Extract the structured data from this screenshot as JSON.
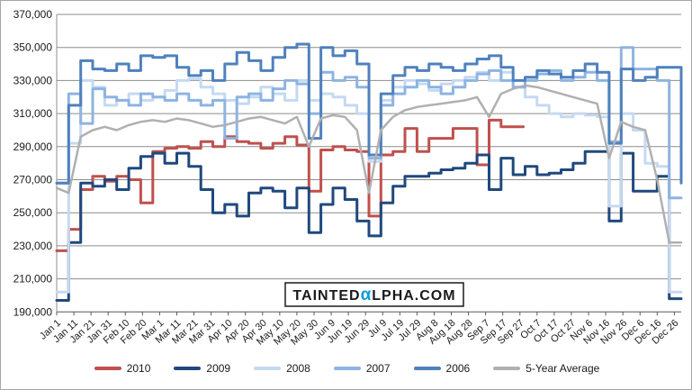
{
  "watermark": {
    "prefix": "TAINTED",
    "alpha": "α",
    "suffix": "LPHA.COM",
    "alpha_color": "#0a9bdc"
  },
  "chart_data": {
    "type": "line",
    "title": "",
    "xlabel": "",
    "ylabel": "",
    "ylim": [
      190000,
      370000
    ],
    "y_tick_step": 20000,
    "grid": true,
    "legend_position": "bottom",
    "x_unit": "day-of-year, weekly points",
    "x_total_days": 365,
    "x_days_per_point": 7,
    "x_tick_labels": [
      "Jan 1",
      "Jan 11",
      "Jan 21",
      "Jan 31",
      "Feb 10",
      "Feb 20",
      "Mar 1",
      "Mar 11",
      "Mar 21",
      "Mar 31",
      "Apr 10",
      "Apr 20",
      "Apr 30",
      "May 10",
      "May 20",
      "May 30",
      "Jun 9",
      "Jun 19",
      "Jun 29",
      "Jul 9",
      "Jul 19",
      "Jul 29",
      "Aug 8",
      "Aug 18",
      "Aug 28",
      "Sep 7",
      "Sep 17",
      "Sep 27",
      "Oct 7",
      "Oct 17",
      "Oct 27",
      "Nov 6",
      "Nov 16",
      "Nov 26",
      "Dec 6",
      "Dec 16",
      "Dec 26"
    ],
    "series": [
      {
        "name": "2010",
        "color": "#C0504D",
        "interp": "step",
        "values": [
          227000,
          240000,
          264000,
          272000,
          269000,
          272000,
          270000,
          256000,
          287000,
          289000,
          290000,
          289000,
          293000,
          290000,
          296000,
          293000,
          292000,
          289000,
          292000,
          296000,
          291000,
          263000,
          288000,
          290000,
          288000,
          287000,
          248000,
          285000,
          287000,
          301000,
          287000,
          295000,
          295000,
          301000,
          301000,
          279000,
          306000,
          302000,
          302000
        ]
      },
      {
        "name": "2009",
        "color": "#1F497D",
        "interp": "step",
        "values": [
          197000,
          232000,
          268000,
          266000,
          270000,
          264000,
          277000,
          284000,
          286000,
          280000,
          286000,
          278000,
          264000,
          250000,
          255000,
          248000,
          262000,
          265000,
          263000,
          253000,
          265000,
          238000,
          255000,
          265000,
          258000,
          245000,
          236000,
          256000,
          266000,
          272000,
          272000,
          274000,
          276000,
          277000,
          280000,
          285000,
          264000,
          283000,
          273000,
          278000,
          273000,
          274000,
          276000,
          280000,
          287000,
          287000,
          245000,
          286000,
          263000,
          263000,
          272000,
          198000,
          198000
        ]
      },
      {
        "name": "2008",
        "color": "#C5D9F1",
        "interp": "step",
        "values": [
          202000,
          292000,
          330000,
          326000,
          315000,
          318000,
          322000,
          318000,
          320000,
          324000,
          330000,
          331000,
          326000,
          322000,
          318000,
          316000,
          320000,
          326000,
          322000,
          318000,
          330000,
          318000,
          322000,
          320000,
          315000,
          310000,
          281000,
          318000,
          326000,
          330000,
          328000,
          324000,
          328000,
          330000,
          332000,
          335000,
          330000,
          335000,
          326000,
          320000,
          315000,
          310000,
          308000,
          310000,
          309000,
          308000,
          254000,
          310000,
          300000,
          280000,
          278000,
          202000,
          202000
        ]
      },
      {
        "name": "2007",
        "color": "#8DB4E2",
        "interp": "step",
        "values": [
          268000,
          322000,
          304000,
          325000,
          320000,
          318000,
          315000,
          322000,
          320000,
          318000,
          322000,
          318000,
          315000,
          318000,
          295000,
          320000,
          322000,
          318000,
          325000,
          330000,
          328000,
          310000,
          335000,
          330000,
          332000,
          326000,
          283000,
          315000,
          322000,
          326000,
          330000,
          326000,
          322000,
          326000,
          330000,
          334000,
          336000,
          330000,
          326000,
          330000,
          334000,
          336000,
          330000,
          332000,
          335000,
          330000,
          293000,
          350000,
          337000,
          337000,
          330000,
          259000,
          259000
        ]
      },
      {
        "name": "2006",
        "color": "#4F81BD",
        "interp": "step",
        "values": [
          268000,
          315000,
          342000,
          337000,
          336000,
          340000,
          336000,
          345000,
          344000,
          345000,
          338000,
          333000,
          336000,
          330000,
          340000,
          347000,
          342000,
          336000,
          344000,
          350000,
          352000,
          295000,
          350000,
          345000,
          348000,
          340000,
          285000,
          322000,
          333000,
          338000,
          336000,
          340000,
          338000,
          336000,
          340000,
          343000,
          345000,
          338000,
          330000,
          332000,
          336000,
          334000,
          332000,
          336000,
          340000,
          335000,
          292000,
          337000,
          330000,
          332000,
          338000,
          338000,
          268000
        ]
      },
      {
        "name": "5-Year Average",
        "color": "#B0B0B0",
        "interp": "linear",
        "values": [
          265000,
          262000,
          296000,
          300000,
          302000,
          300000,
          303000,
          305000,
          306000,
          305000,
          307000,
          306000,
          304000,
          302000,
          303000,
          305000,
          307000,
          308000,
          306000,
          304000,
          308000,
          290000,
          307000,
          309000,
          308000,
          300000,
          262000,
          300000,
          308000,
          312000,
          314000,
          315000,
          316000,
          317000,
          318000,
          320000,
          308000,
          322000,
          325000,
          327000,
          326000,
          324000,
          322000,
          320000,
          318000,
          316000,
          283000,
          305000,
          302000,
          300000,
          270000,
          232000,
          232000
        ]
      }
    ]
  }
}
